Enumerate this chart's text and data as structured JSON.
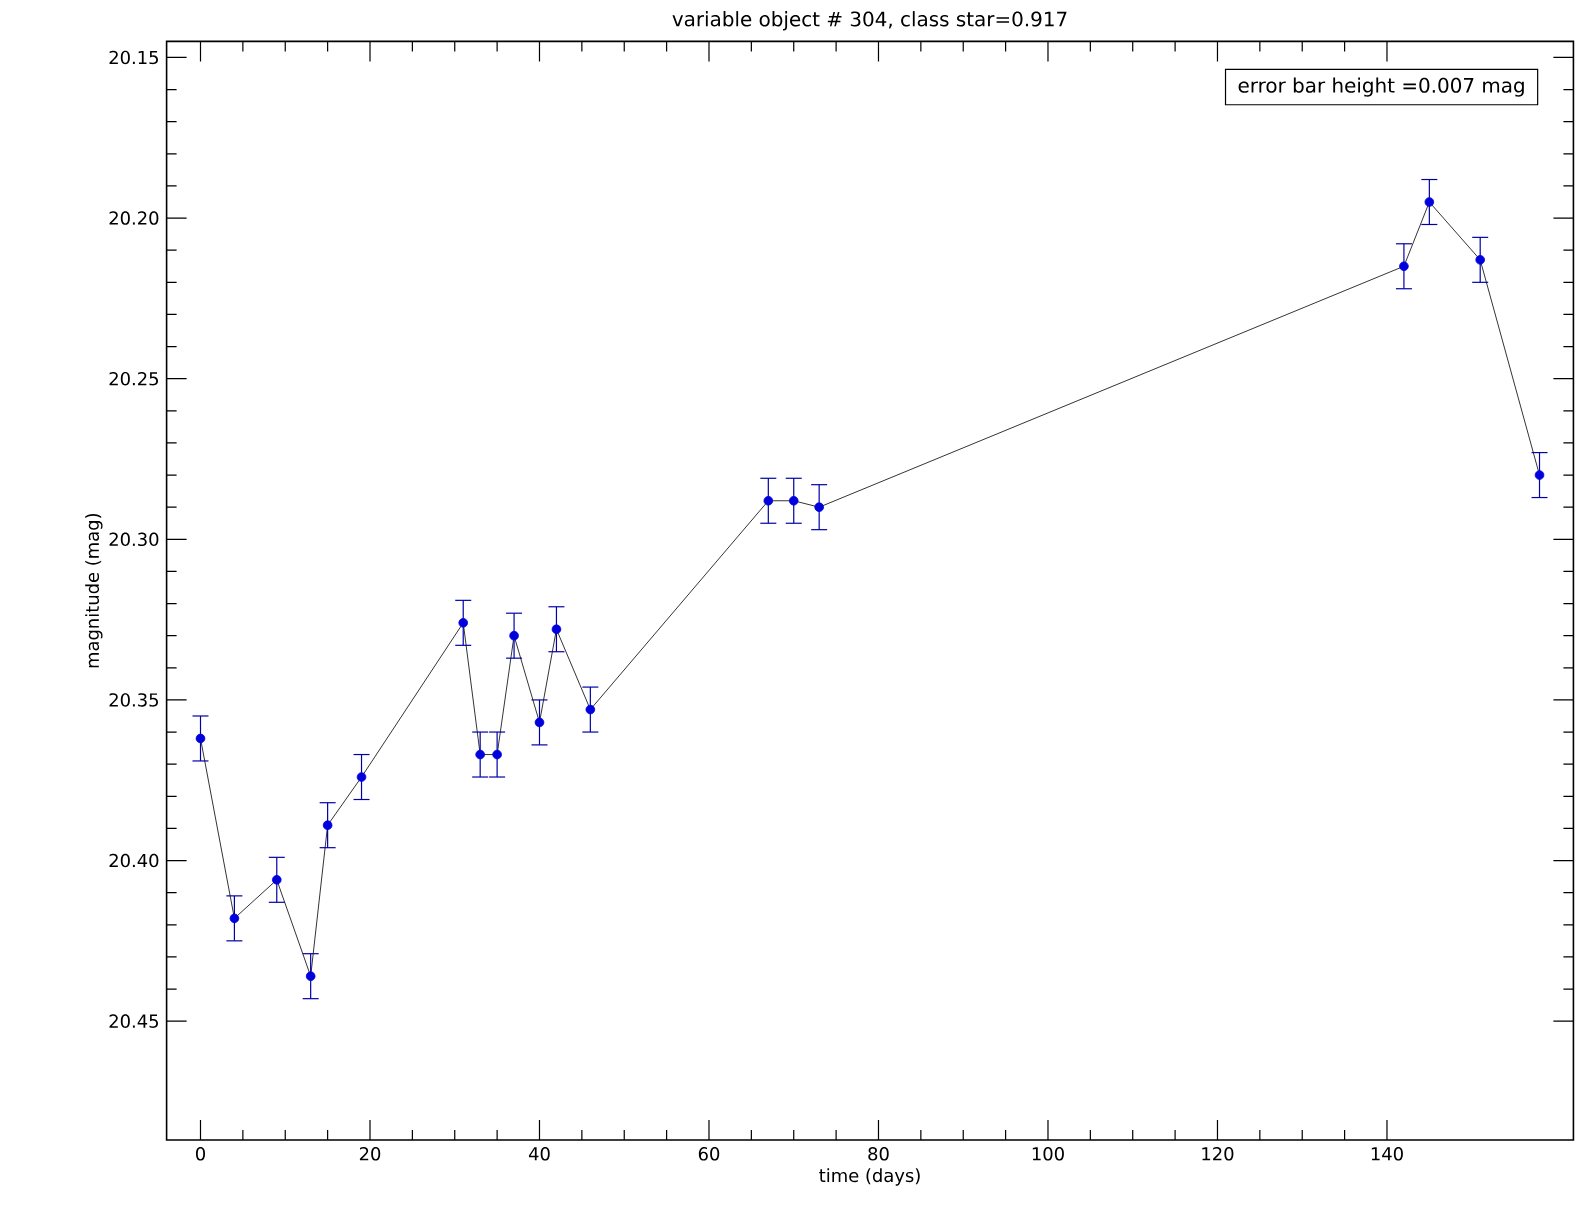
{
  "chart_data": {
    "type": "line",
    "title": "variable object #  304, class star=0.917",
    "xlabel": "time (days)",
    "ylabel": "magnitude (mag)",
    "annotations": [
      "error bar height =0.007 mag"
    ],
    "x": [
      0,
      4,
      9,
      13,
      15,
      19,
      31,
      33,
      35,
      37,
      40,
      42,
      46,
      67,
      70,
      73,
      142,
      145,
      151,
      158
    ],
    "series": [
      {
        "color": "#0000dd",
        "values": [
          20.362,
          20.418,
          20.406,
          20.436,
          20.389,
          20.374,
          20.326,
          20.367,
          20.367,
          20.33,
          20.357,
          20.328,
          20.353,
          20.288,
          20.288,
          20.29,
          20.215,
          20.195,
          20.213,
          20.28
        ],
        "errors": [
          0.007,
          0.007,
          0.007,
          0.007,
          0.007,
          0.007,
          0.007,
          0.007,
          0.007,
          0.007,
          0.007,
          0.007,
          0.007,
          0.007,
          0.007,
          0.007,
          0.007,
          0.007,
          0.007,
          0.007
        ]
      }
    ],
    "marker": "circle",
    "line_style": "solid",
    "xlim": [
      -4,
      162
    ],
    "ylim": [
      20.487,
      20.145
    ],
    "xticks": [
      0,
      20,
      40,
      60,
      80,
      100,
      120,
      140
    ],
    "yticks": [
      {
        "value": 20.15,
        "label": "20.15"
      },
      {
        "value": 20.2,
        "label": "20.20"
      },
      {
        "value": 20.25,
        "label": "20.25"
      },
      {
        "value": 20.3,
        "label": "20.30"
      },
      {
        "value": 20.35,
        "label": "20.35"
      },
      {
        "value": 20.4,
        "label": "20.40"
      },
      {
        "value": 20.45,
        "label": "20.45"
      }
    ]
  }
}
